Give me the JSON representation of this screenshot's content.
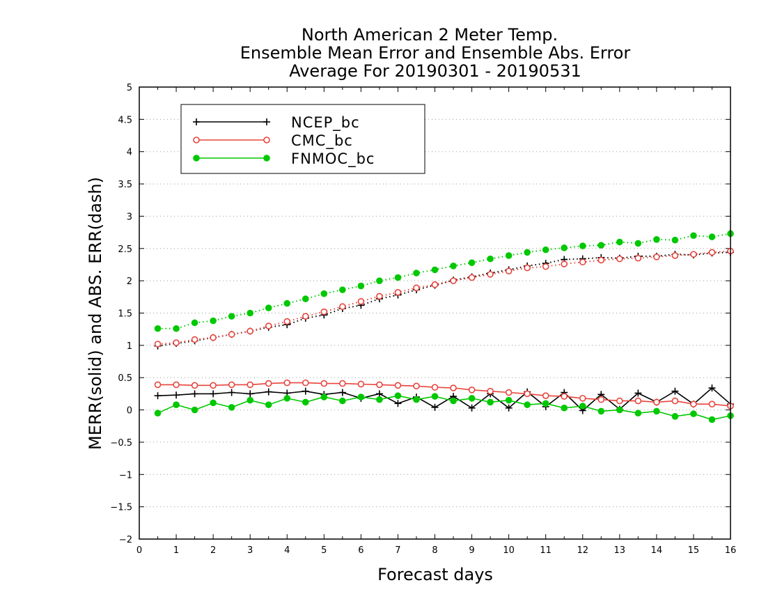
{
  "chart_data": {
    "type": "line",
    "title": [
      "North American 2 Meter Temp.",
      "Ensemble Mean Error and Ensemble Abs. Error",
      "Average For 20190301 - 20190531"
    ],
    "xlabel": "Forecast days",
    "ylabel": "MERR(solid) and ABS. ERR(dash)",
    "xlim": [
      0,
      16
    ],
    "ylim": [
      -2,
      5
    ],
    "xticks": [
      "0",
      "1",
      "2",
      "3",
      "4",
      "5",
      "6",
      "7",
      "8",
      "9",
      "10",
      "11",
      "12",
      "13",
      "14",
      "15",
      "16"
    ],
    "yticks": [
      "−2",
      "−1.5",
      "−1",
      "−0.5",
      "0",
      "0.5",
      "1",
      "1.5",
      "2",
      "2.5",
      "3",
      "3.5",
      "4",
      "4.5",
      "5"
    ],
    "grid": true,
    "legend_position": "top-left",
    "x": [
      0.5,
      1,
      1.5,
      2,
      2.5,
      3,
      3.5,
      4,
      4.5,
      5,
      5.5,
      6,
      6.5,
      7,
      7.5,
      8,
      8.5,
      9,
      9.5,
      10,
      10.5,
      11,
      11.5,
      12,
      12.5,
      13,
      13.5,
      14,
      14.5,
      15,
      15.5,
      16
    ],
    "series": [
      {
        "name": "NCEP_bc",
        "color": "#000000",
        "marker": "plus",
        "merr": [
          0.22,
          0.23,
          0.25,
          0.25,
          0.27,
          0.25,
          0.28,
          0.26,
          0.29,
          0.24,
          0.27,
          0.18,
          0.25,
          0.1,
          0.2,
          0.04,
          0.21,
          0.03,
          0.25,
          0.03,
          0.28,
          0.05,
          0.27,
          -0.01,
          0.24,
          0.01,
          0.26,
          0.12,
          0.29,
          0.09,
          0.34,
          0.09
        ],
        "abserr": [
          0.99,
          1.03,
          1.07,
          1.12,
          1.17,
          1.22,
          1.28,
          1.32,
          1.42,
          1.47,
          1.57,
          1.62,
          1.72,
          1.78,
          1.86,
          1.93,
          2.01,
          2.06,
          2.12,
          2.17,
          2.23,
          2.27,
          2.33,
          2.34,
          2.36,
          2.35,
          2.38,
          2.38,
          2.41,
          2.4,
          2.43,
          2.44
        ]
      },
      {
        "name": "CMC_bc",
        "color": "#e8433c",
        "marker": "open-circle",
        "merr": [
          0.39,
          0.39,
          0.38,
          0.38,
          0.39,
          0.39,
          0.41,
          0.42,
          0.42,
          0.41,
          0.41,
          0.4,
          0.39,
          0.38,
          0.37,
          0.35,
          0.34,
          0.31,
          0.29,
          0.27,
          0.25,
          0.22,
          0.21,
          0.18,
          0.16,
          0.14,
          0.14,
          0.12,
          0.14,
          0.09,
          0.09,
          0.06
        ],
        "abserr": [
          1.02,
          1.04,
          1.09,
          1.12,
          1.17,
          1.22,
          1.3,
          1.37,
          1.45,
          1.52,
          1.6,
          1.68,
          1.76,
          1.82,
          1.89,
          1.94,
          2.0,
          2.05,
          2.1,
          2.15,
          2.2,
          2.22,
          2.26,
          2.29,
          2.32,
          2.34,
          2.35,
          2.37,
          2.39,
          2.41,
          2.44,
          2.46
        ]
      },
      {
        "name": "FNMOC_bc",
        "color": "#00c800",
        "marker": "filled-circle",
        "merr": [
          -0.05,
          0.08,
          0.0,
          0.11,
          0.04,
          0.15,
          0.08,
          0.18,
          0.12,
          0.2,
          0.14,
          0.2,
          0.16,
          0.22,
          0.16,
          0.21,
          0.14,
          0.18,
          0.12,
          0.15,
          0.08,
          0.1,
          0.03,
          0.06,
          -0.02,
          0.0,
          -0.05,
          -0.02,
          -0.1,
          -0.06,
          -0.15,
          -0.09
        ],
        "abserr": [
          1.26,
          1.26,
          1.35,
          1.38,
          1.45,
          1.5,
          1.58,
          1.65,
          1.72,
          1.8,
          1.86,
          1.92,
          2.0,
          2.05,
          2.12,
          2.17,
          2.23,
          2.28,
          2.34,
          2.39,
          2.44,
          2.48,
          2.51,
          2.54,
          2.55,
          2.6,
          2.58,
          2.64,
          2.63,
          2.7,
          2.68,
          2.73
        ]
      }
    ]
  }
}
